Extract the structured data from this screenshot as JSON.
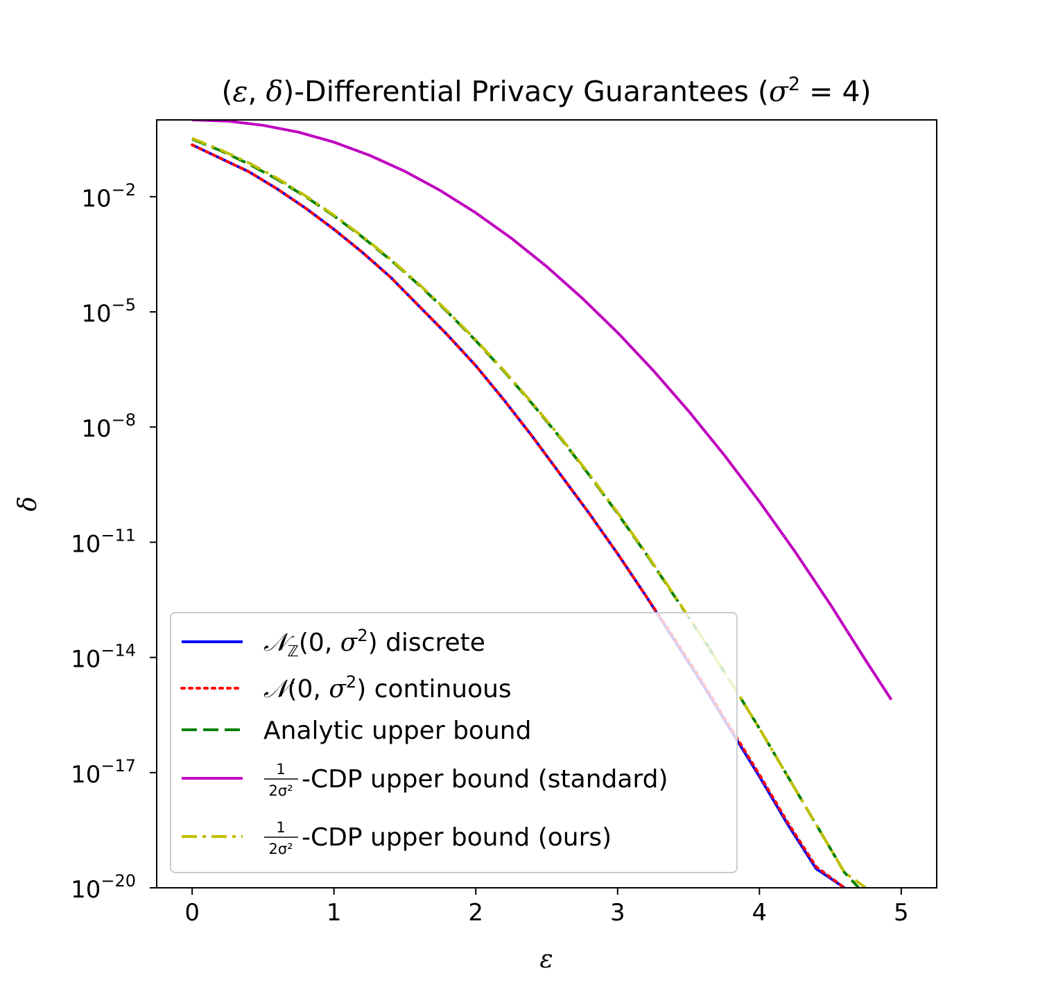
{
  "chart_data": {
    "type": "line",
    "title_parts": [
      "(",
      "ε",
      ", ",
      "δ",
      ")-Differential Privacy Guarantees (",
      "σ",
      "2",
      " = 4)"
    ],
    "xlabel": "ε",
    "ylabel": "δ",
    "xlim": [
      -0.25,
      5.25
    ],
    "y_log10_lim": [
      -20,
      0.0
    ],
    "y_scale": "log",
    "grid": false,
    "legend_position": "lower-left",
    "x_ticks": [
      0,
      1,
      2,
      3,
      4,
      5
    ],
    "x_tick_labels": [
      "0",
      "1",
      "2",
      "3",
      "4",
      "5"
    ],
    "y_tick_exponents": [
      -2,
      -5,
      -8,
      -11,
      -14,
      -17,
      -20
    ],
    "y_tick_labels": [
      {
        "base": "10",
        "exp": "−2"
      },
      {
        "base": "10",
        "exp": "−5"
      },
      {
        "base": "10",
        "exp": "−8"
      },
      {
        "base": "10",
        "exp": "−11"
      },
      {
        "base": "10",
        "exp": "−14"
      },
      {
        "base": "10",
        "exp": "−17"
      },
      {
        "base": "10",
        "exp": "−20"
      }
    ],
    "series": [
      {
        "name": "𝒩ℤ(0, σ²) discrete",
        "label_parts": [
          "𝒩",
          "ℤ",
          "(0, ",
          "σ",
          "2",
          ") discrete"
        ],
        "color": "#0000ff",
        "style": "solid",
        "x": [
          0.0,
          0.2,
          0.4,
          0.6,
          0.8,
          1.0,
          1.2,
          1.4,
          1.6,
          1.8,
          2.0,
          2.2,
          2.4,
          2.6,
          2.8,
          3.0,
          3.2,
          3.4,
          3.6,
          3.8,
          4.0,
          4.2,
          4.4,
          4.6
        ],
        "log10_y": [
          -0.65,
          -1.0,
          -1.35,
          -1.8,
          -2.3,
          -2.85,
          -3.45,
          -4.1,
          -4.85,
          -5.6,
          -6.4,
          -7.3,
          -8.25,
          -9.25,
          -10.25,
          -11.3,
          -12.4,
          -13.55,
          -14.7,
          -15.9,
          -17.1,
          -18.35,
          -19.5,
          -20.0
        ]
      },
      {
        "name": "𝒩(0, σ²) continuous",
        "label_parts": [
          "𝒩",
          "",
          "(0, ",
          "σ",
          "2",
          ") continuous"
        ],
        "color": "#ff0000",
        "style": "dotted",
        "x": [
          0.0,
          0.2,
          0.4,
          0.6,
          0.8,
          1.0,
          1.2,
          1.4,
          1.6,
          1.8,
          2.0,
          2.2,
          2.4,
          2.6,
          2.8,
          3.0,
          3.2,
          3.4,
          3.6,
          3.8,
          4.0,
          4.2,
          4.4,
          4.6
        ],
        "log10_y": [
          -0.65,
          -1.0,
          -1.35,
          -1.8,
          -2.3,
          -2.85,
          -3.45,
          -4.1,
          -4.85,
          -5.6,
          -6.4,
          -7.3,
          -8.25,
          -9.25,
          -10.25,
          -11.3,
          -12.4,
          -13.5,
          -14.65,
          -15.85,
          -17.05,
          -18.3,
          -19.45,
          -20.0
        ]
      },
      {
        "name": "Analytic upper bound",
        "label_parts": [
          "Analytic upper bound"
        ],
        "color": "#008000",
        "style": "dashed",
        "x": [
          0.0,
          0.2,
          0.4,
          0.6,
          0.8,
          1.0,
          1.2,
          1.4,
          1.6,
          1.8,
          2.0,
          2.2,
          2.4,
          2.6,
          2.8,
          3.0,
          3.2,
          3.4,
          3.6,
          3.8,
          4.0,
          4.2,
          4.4,
          4.6,
          4.7
        ],
        "log10_y": [
          -0.5,
          -0.8,
          -1.15,
          -1.55,
          -2.0,
          -2.5,
          -3.05,
          -3.65,
          -4.3,
          -5.0,
          -5.75,
          -6.55,
          -7.4,
          -8.3,
          -9.25,
          -10.25,
          -11.3,
          -12.4,
          -13.5,
          -14.65,
          -15.85,
          -17.1,
          -18.35,
          -19.6,
          -20.0
        ]
      },
      {
        "name": "1/(2σ²)-CDP upper bound (standard)",
        "label_parts": [
          "1",
          "2σ²",
          "-CDP upper bound (standard)"
        ],
        "color": "#bf00bf",
        "style": "solid",
        "x": [
          0.0,
          0.25,
          0.5,
          0.75,
          1.0,
          1.25,
          1.5,
          1.75,
          2.0,
          2.25,
          2.5,
          2.75,
          3.0,
          3.25,
          3.5,
          3.75,
          4.0,
          4.25,
          4.5,
          4.75,
          4.93
        ],
        "log10_y": [
          0.0,
          -0.03,
          -0.14,
          -0.32,
          -0.58,
          -0.92,
          -1.34,
          -1.84,
          -2.42,
          -3.08,
          -3.82,
          -4.64,
          -5.54,
          -6.52,
          -7.58,
          -8.72,
          -9.94,
          -11.24,
          -12.62,
          -14.08,
          -15.1
        ]
      },
      {
        "name": "1/(2σ²)-CDP upper bound (ours)",
        "label_parts": [
          "1",
          "2σ²",
          "-CDP upper bound (ours)"
        ],
        "color": "#bfbf00",
        "style": "dashdot",
        "x": [
          0.0,
          0.2,
          0.4,
          0.6,
          0.8,
          1.0,
          1.2,
          1.4,
          1.6,
          1.8,
          2.0,
          2.2,
          2.4,
          2.6,
          2.8,
          3.0,
          3.2,
          3.4,
          3.6,
          3.8,
          4.0,
          4.2,
          4.4,
          4.6,
          4.75
        ],
        "log10_y": [
          -0.48,
          -0.78,
          -1.12,
          -1.52,
          -1.98,
          -2.48,
          -3.03,
          -3.63,
          -4.28,
          -4.98,
          -5.73,
          -6.53,
          -7.38,
          -8.28,
          -9.23,
          -10.23,
          -11.28,
          -12.38,
          -13.5,
          -14.65,
          -15.85,
          -17.1,
          -18.35,
          -19.6,
          -20.0
        ]
      }
    ]
  }
}
